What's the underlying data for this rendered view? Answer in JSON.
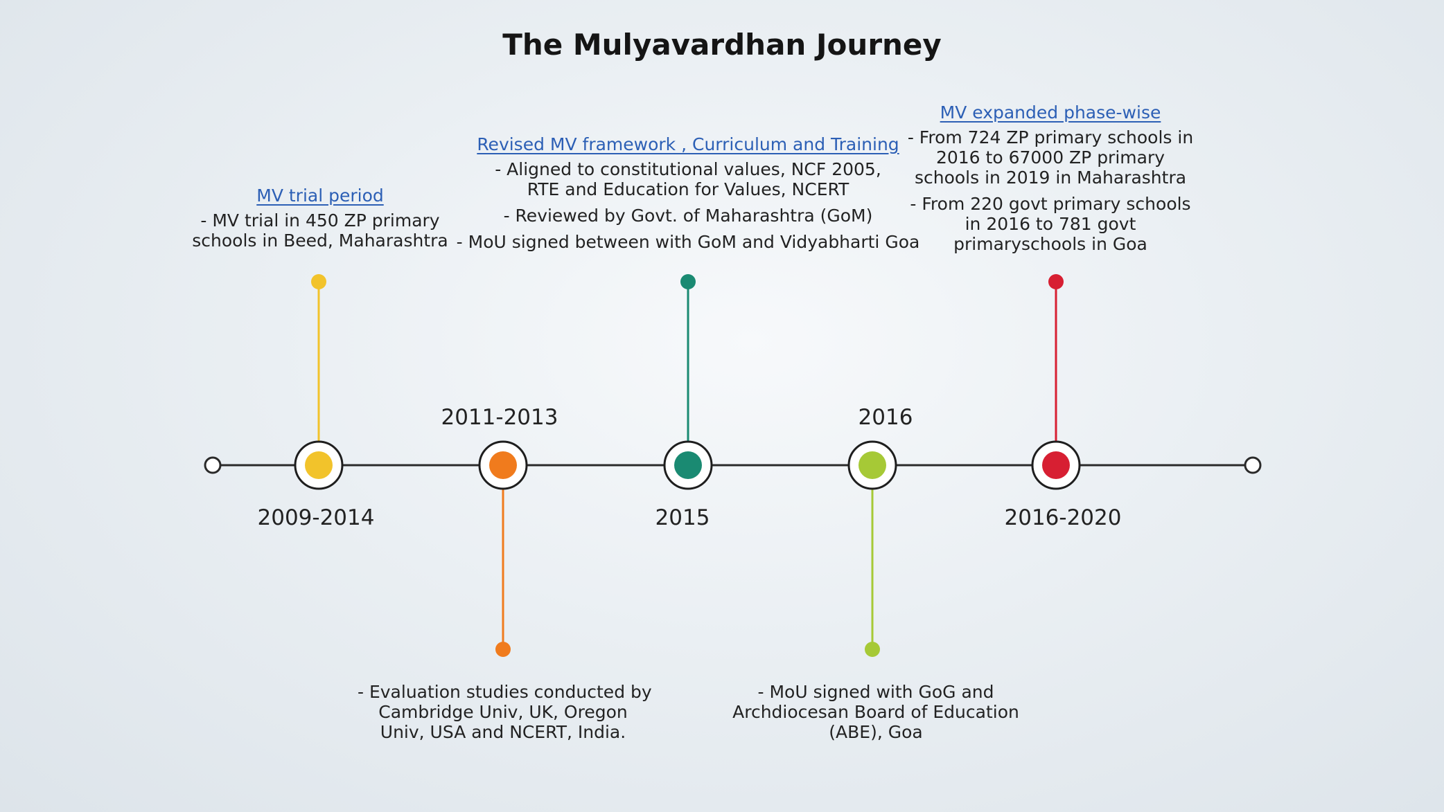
{
  "title": "The Mulyavardhan Journey",
  "colors": {
    "axis": "#2a2a2a",
    "yellow": "#f2c32b",
    "orange": "#f07b1d",
    "teal": "#1a8a72",
    "lime": "#a6c936",
    "red": "#d71f32",
    "link": "#2c5fb5"
  },
  "milestones": [
    {
      "id": "m1",
      "year": "2009-2014",
      "color": "yellow"
    },
    {
      "id": "m2",
      "year": "2011-2013",
      "color": "orange"
    },
    {
      "id": "m3",
      "year": "2015",
      "color": "teal"
    },
    {
      "id": "m4",
      "year": "2016",
      "color": "lime"
    },
    {
      "id": "m5",
      "year": "2016-2020",
      "color": "red"
    }
  ],
  "events": {
    "trial": {
      "heading": "MV trial period ",
      "lines": [
        "- MV trial in 450 ZP primary",
        "schools in Beed, Maharashtra"
      ]
    },
    "evaluation": {
      "lines": [
        "- Evaluation studies conducted by",
        "Cambridge Univ, UK, Oregon",
        "Univ, USA and NCERT, India."
      ]
    },
    "revised": {
      "heading": "Revised MV framework , Curriculum and Training",
      "lines": [
        "- Aligned to constitutional values, NCF 2005,",
        "RTE and Education for Values, NCERT",
        "- Reviewed by Govt. of Maharashtra (GoM)",
        "- MoU signed between with GoM and Vidyabharti Goa"
      ]
    },
    "mou_goa": {
      "lines": [
        "- MoU signed with GoG and",
        "Archdiocesan Board of Education",
        "(ABE), Goa"
      ]
    },
    "expanded": {
      "heading": "MV expanded phase-wise ",
      "lines": [
        "- From 724 ZP primary schools in",
        "2016 to 67000 ZP primary",
        "schools in 2019 in Maharashtra",
        "- From 220 govt primary schools",
        "in 2016 to 781 govt",
        "primaryschools in Goa"
      ]
    }
  }
}
